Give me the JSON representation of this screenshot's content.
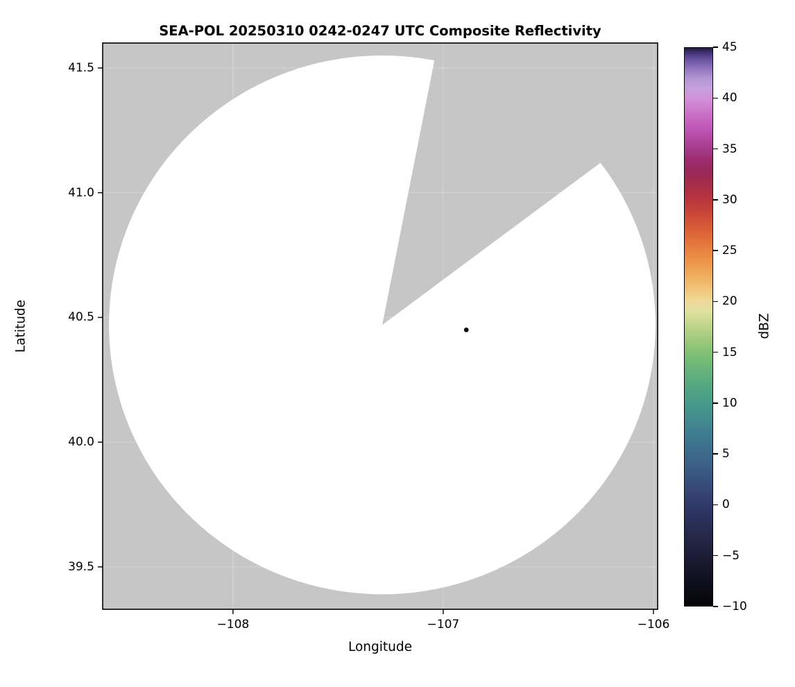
{
  "chart_data": {
    "type": "heatmap",
    "subtype": "radar-ppi-composite-reflectivity",
    "title": "SEA-POL 20250310 0242-0247 UTC Composite Reflectivity",
    "xlabel": "Longitude",
    "ylabel": "Latitude",
    "xlim": [
      -108.62,
      -105.98
    ],
    "ylim": [
      39.33,
      41.6
    ],
    "xticks": {
      "values": [
        -108,
        -107,
        -106
      ],
      "labels": [
        "−108",
        "−107",
        "−106"
      ]
    },
    "yticks": {
      "values": [
        39.5,
        40.0,
        40.5,
        41.0,
        41.5
      ],
      "labels": [
        "39.5",
        "40.0",
        "40.5",
        "41.0",
        "41.5"
      ]
    },
    "grid": true,
    "grid_color": "#ffffff",
    "grid_alpha": 0.3,
    "background_color": "#c6c6c6",
    "frame_color": "#000000",
    "coverage": {
      "description": "White disc = radar scan coverage with no detectable echo; gray = outside coverage / blocked sector",
      "center_lon": -107.29,
      "center_lat": 40.47,
      "radius_lon_deg": 1.3,
      "radius_lat_deg": 1.08,
      "blocked_sector_azimuth_deg": [
        11,
        53
      ],
      "fill_color": "#ffffff"
    },
    "echoes": [
      {
        "lon": -106.89,
        "lat": 40.45,
        "approx_dbz": -8,
        "color": "#0d0d18",
        "radius_px": 3.4
      }
    ],
    "colorbar": {
      "label": "dBZ",
      "min": -10,
      "max": 45,
      "tick_values": [
        -10,
        -5,
        0,
        5,
        10,
        15,
        20,
        25,
        30,
        35,
        40,
        45
      ],
      "tick_labels": [
        "−10",
        "−5",
        "0",
        "5",
        "10",
        "15",
        "20",
        "25",
        "30",
        "35",
        "40",
        "45"
      ],
      "stops": [
        {
          "value": -10,
          "color": "#040407"
        },
        {
          "value": -8,
          "color": "#0e0e19"
        },
        {
          "value": -6,
          "color": "#17182c"
        },
        {
          "value": -4,
          "color": "#212340"
        },
        {
          "value": -2,
          "color": "#2a2e55"
        },
        {
          "value": 0,
          "color": "#323a69"
        },
        {
          "value": 2,
          "color": "#374d7b"
        },
        {
          "value": 4,
          "color": "#3b6187"
        },
        {
          "value": 6,
          "color": "#3e748e"
        },
        {
          "value": 8,
          "color": "#428790"
        },
        {
          "value": 10,
          "color": "#479a8b"
        },
        {
          "value": 12,
          "color": "#57aa80"
        },
        {
          "value": 14,
          "color": "#72b977"
        },
        {
          "value": 15,
          "color": "#84c077"
        },
        {
          "value": 16,
          "color": "#99c87b"
        },
        {
          "value": 17,
          "color": "#b0d084"
        },
        {
          "value": 18,
          "color": "#c9d890"
        },
        {
          "value": 19,
          "color": "#e0e0a0"
        },
        {
          "value": 20,
          "color": "#edda9b"
        },
        {
          "value": 21,
          "color": "#f0ca80"
        },
        {
          "value": 22,
          "color": "#f0b768"
        },
        {
          "value": 24,
          "color": "#ec9448"
        },
        {
          "value": 26,
          "color": "#e2713a"
        },
        {
          "value": 28,
          "color": "#d05136"
        },
        {
          "value": 30,
          "color": "#b9363c"
        },
        {
          "value": 32,
          "color": "#a02a4d"
        },
        {
          "value": 33,
          "color": "#98295c"
        },
        {
          "value": 34,
          "color": "#9c2e70"
        },
        {
          "value": 35,
          "color": "#a63a88"
        },
        {
          "value": 36,
          "color": "#b248a0"
        },
        {
          "value": 37,
          "color": "#bd57b3"
        },
        {
          "value": 38,
          "color": "#c767c1"
        },
        {
          "value": 39,
          "color": "#cf7bce"
        },
        {
          "value": 40,
          "color": "#d191d7"
        },
        {
          "value": 41,
          "color": "#c7a0dc"
        },
        {
          "value": 42,
          "color": "#b197d3"
        },
        {
          "value": 43,
          "color": "#8f74bc"
        },
        {
          "value": 44,
          "color": "#634d9c"
        },
        {
          "value": 45,
          "color": "#221845"
        }
      ]
    }
  }
}
